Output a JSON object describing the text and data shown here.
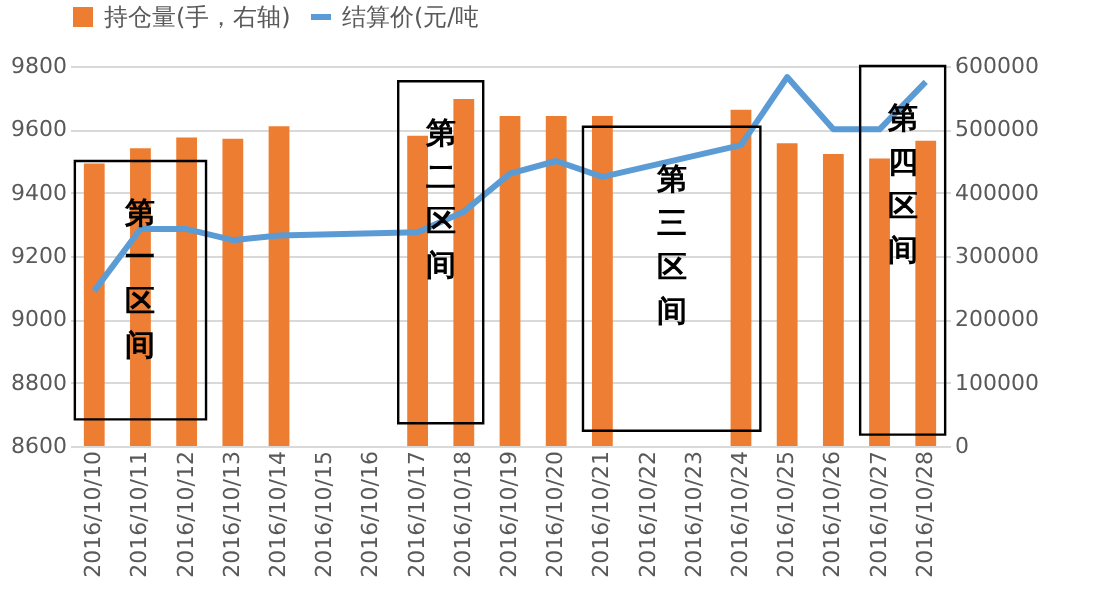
{
  "chart_data": {
    "type": "bar",
    "categories": [
      "2016/10/10",
      "2016/10/11",
      "2016/10/12",
      "2016/10/13",
      "2016/10/14",
      "2016/10/15",
      "2016/10/16",
      "2016/10/17",
      "2016/10/18",
      "2016/10/19",
      "2016/10/20",
      "2016/10/21",
      "2016/10/22",
      "2016/10/23",
      "2016/10/24",
      "2016/10/25",
      "2016/10/26",
      "2016/10/27",
      "2016/10/28"
    ],
    "series": [
      {
        "name": "持仓量(手，右轴)",
        "axis": "y2",
        "color": "#ed7d31",
        "values": [
          446000,
          470000,
          487000,
          485000,
          505000,
          null,
          null,
          490000,
          548000,
          521000,
          521000,
          521000,
          null,
          null,
          531000,
          478000,
          461000,
          454000,
          482000
        ]
      },
      {
        "name": "结算价(元/吨",
        "type": "line",
        "color": "#5b9bd5",
        "values": [
          9090,
          9285,
          9285,
          9250,
          9265,
          null,
          null,
          9275,
          9340,
          9460,
          9500,
          9450,
          null,
          null,
          9550,
          9765,
          9600,
          9600,
          9750
        ]
      }
    ],
    "ylim": [
      8600,
      9800
    ],
    "yticks": [
      8600,
      8800,
      9000,
      9200,
      9400,
      9600,
      9800
    ],
    "y2lim": [
      0,
      600000
    ],
    "y2ticks": [
      0,
      100000,
      200000,
      300000,
      400000,
      500000,
      600000
    ],
    "bands": [
      {
        "axis": "x",
        "from": "2016/10/10",
        "to": "2016/10/12",
        "label": "第一区间"
      },
      {
        "axis": "x",
        "from": "2016/10/17",
        "to": "2016/10/18",
        "label": "第二区间"
      },
      {
        "axis": "x",
        "from": "2016/10/21",
        "to": "2016/10/24",
        "label": "第三区间"
      },
      {
        "axis": "x",
        "from": "2016/10/27",
        "to": "2016/10/28",
        "label": "第四区间"
      }
    ],
    "grid": "y",
    "legend": "top",
    "marker": "none",
    "line_style": "solid"
  }
}
